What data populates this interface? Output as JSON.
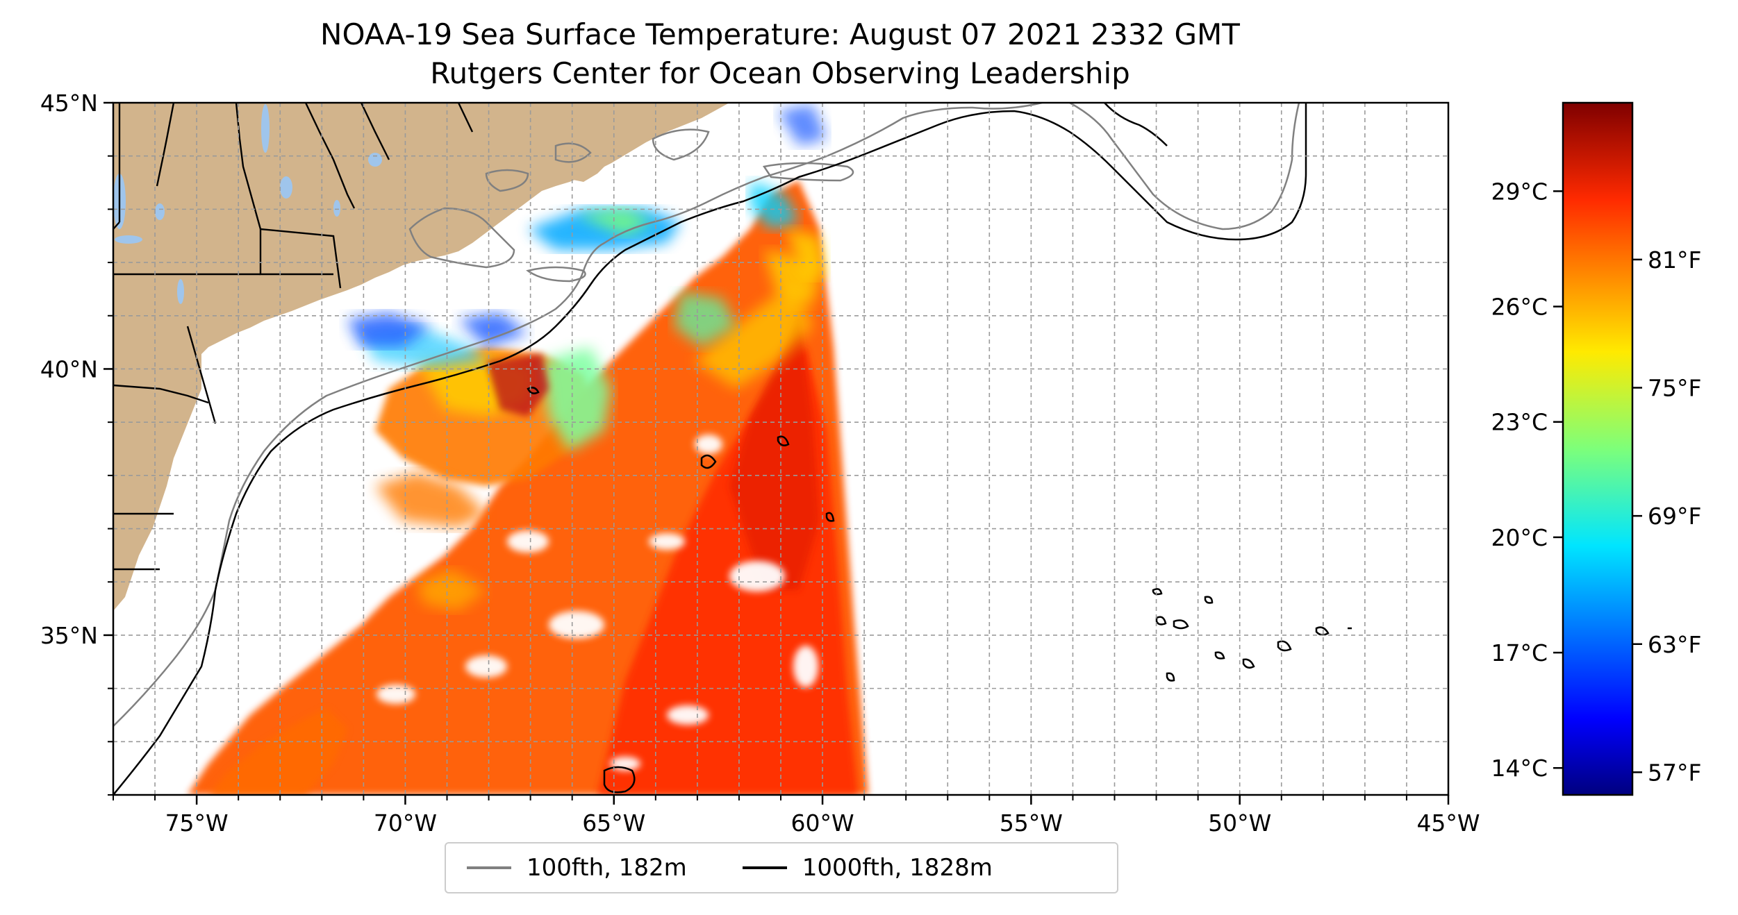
{
  "title": "NOAA-19 Sea Surface Temperature: August 07 2021 2332 GMT",
  "subtitle": "Rutgers Center for Ocean Observing Leadership",
  "map": {
    "lon_range": [
      -77,
      -45
    ],
    "lat_range": [
      32,
      45
    ],
    "lon_ticks": [
      {
        "value": -75,
        "label": "75°W"
      },
      {
        "value": -70,
        "label": "70°W"
      },
      {
        "value": -65,
        "label": "65°W"
      },
      {
        "value": -60,
        "label": "60°W"
      },
      {
        "value": -55,
        "label": "55°W"
      },
      {
        "value": -50,
        "label": "50°W"
      },
      {
        "value": -45,
        "label": "45°W"
      }
    ],
    "lat_ticks": [
      {
        "value": 45,
        "label": "45°N"
      },
      {
        "value": 40,
        "label": "40°N"
      },
      {
        "value": 35,
        "label": "35°N"
      }
    ],
    "gridlines": "dashed",
    "land_color": "#d2b48c",
    "lake_color": "#9fc5ec"
  },
  "colorbar": {
    "colormap": "jet",
    "celsius_ticks": [
      {
        "value": 14,
        "label": "14°C"
      },
      {
        "value": 17,
        "label": "17°C"
      },
      {
        "value": 20,
        "label": "20°C"
      },
      {
        "value": 23,
        "label": "23°C"
      },
      {
        "value": 26,
        "label": "26°C"
      },
      {
        "value": 29,
        "label": "29°C"
      }
    ],
    "fahrenheit_ticks": [
      {
        "value": 57,
        "label": "57°F"
      },
      {
        "value": 63,
        "label": "63°F"
      },
      {
        "value": 69,
        "label": "69°F"
      },
      {
        "value": 75,
        "label": "75°F"
      },
      {
        "value": 81,
        "label": "81°F"
      }
    ]
  },
  "legend": {
    "items": [
      {
        "label": "100fth, 182m",
        "color": "#808080"
      },
      {
        "label": "1000fth, 1828m",
        "color": "#000000"
      }
    ]
  }
}
